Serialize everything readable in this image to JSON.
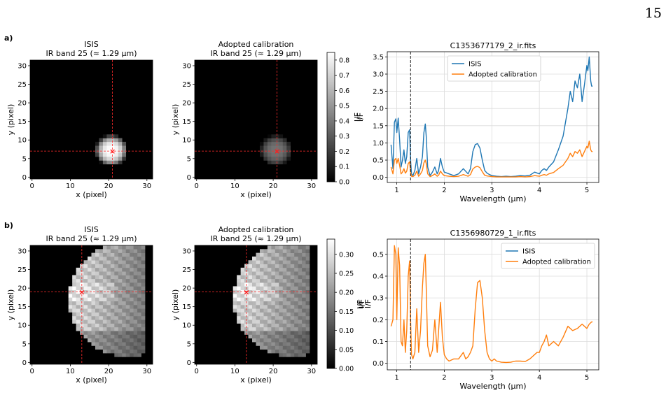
{
  "page_number": "15",
  "rows": [
    {
      "label": "a)",
      "images": [
        {
          "title1": "ISIS",
          "title2": "IR band 25 (≈ 1.29 µm)"
        },
        {
          "title1": "Adopted calibration",
          "title2": "IR band 25 (≈ 1.29 µm)"
        }
      ],
      "image_axes": {
        "xlabel": "x (pixel)",
        "ylabel": "y (pixel)",
        "xticks": [
          0,
          10,
          20,
          30
        ],
        "yticks": [
          0,
          5,
          10,
          15,
          20,
          25,
          30
        ]
      },
      "marker": {
        "x": 21,
        "y": 7
      },
      "colorbar": {
        "label": "I/F",
        "ticks": [
          "0.0",
          "0.1",
          "0.2",
          "0.3",
          "0.4",
          "0.5",
          "0.6",
          "0.7",
          "0.8"
        ],
        "max": 0.85
      },
      "spectrum": {
        "title": "C1353677179_2_ir.fits",
        "xlabel": "Wavelength (µm)",
        "ylabel": "I/F",
        "legend": [
          "ISIS",
          "Adopted calibration"
        ],
        "legend_loc": "upper-center",
        "ylim": [
          -0.15,
          3.65
        ],
        "yticks": [
          "0.0",
          "0.5",
          "1.0",
          "1.5",
          "2.0",
          "2.5",
          "3.0",
          "3.5"
        ]
      }
    },
    {
      "label": "b)",
      "images": [
        {
          "title1": "ISIS",
          "title2": "IR band 25 (≈ 1.29 µm)"
        },
        {
          "title1": "Adopted calibration",
          "title2": "IR band 25 (≈ 1.29 µm)"
        }
      ],
      "image_axes": {
        "xlabel": "x (pixel)",
        "ylabel": "y (pixel)",
        "xticks": [
          0,
          10,
          20,
          30
        ],
        "yticks": [
          0,
          5,
          10,
          15,
          20,
          25,
          30
        ]
      },
      "marker": {
        "x": 13,
        "y": 19
      },
      "colorbar": {
        "label": "I/F",
        "label2": "I/F",
        "ticks": [
          "0.00",
          "0.05",
          "0.10",
          "0.15",
          "0.20",
          "0.25",
          "0.30"
        ],
        "max": 0.34
      },
      "spectrum": {
        "title": "C1356980729_1_ir.fits",
        "xlabel": "Wavelength (µm)",
        "ylabel": "I/F",
        "legend": [
          "ISIS",
          "Adopted calibration"
        ],
        "legend_loc": "upper-right",
        "ylim": [
          -0.03,
          0.57
        ],
        "yticks": [
          "0.0",
          "0.1",
          "0.2",
          "0.3",
          "0.4",
          "0.5"
        ]
      }
    }
  ],
  "chart_data": [
    {
      "type": "line",
      "title": "C1353677179_2_ir.fits",
      "xlabel": "Wavelength (µm)",
      "ylabel": "I/F",
      "xlim": [
        0.8,
        5.25
      ],
      "ylim": [
        -0.15,
        3.65
      ],
      "xticks": [
        1,
        2,
        3,
        4,
        5
      ],
      "vline_x": 1.29,
      "grid": true,
      "series": [
        {
          "name": "ISIS",
          "color": "#1f77b4",
          "x": [
            0.88,
            0.92,
            0.95,
            0.98,
            1.0,
            1.03,
            1.06,
            1.09,
            1.12,
            1.15,
            1.18,
            1.21,
            1.24,
            1.27,
            1.29,
            1.31,
            1.34,
            1.38,
            1.42,
            1.46,
            1.5,
            1.54,
            1.57,
            1.6,
            1.62,
            1.65,
            1.7,
            1.75,
            1.8,
            1.85,
            1.88,
            1.92,
            1.96,
            2.0,
            2.1,
            2.2,
            2.3,
            2.4,
            2.5,
            2.55,
            2.6,
            2.65,
            2.7,
            2.75,
            2.8,
            2.85,
            2.9,
            2.95,
            3.0,
            3.1,
            3.2,
            3.3,
            3.4,
            3.5,
            3.6,
            3.7,
            3.8,
            3.9,
            4.0,
            4.05,
            4.1,
            4.15,
            4.2,
            4.3,
            4.4,
            4.5,
            4.55,
            4.6,
            4.65,
            4.7,
            4.75,
            4.8,
            4.85,
            4.9,
            4.95,
            5.0,
            5.02,
            5.05,
            5.08,
            5.1,
            5.12
          ],
          "y": [
            0.95,
            0.25,
            1.6,
            1.7,
            1.3,
            1.72,
            1.1,
            0.3,
            0.5,
            0.8,
            0.4,
            0.6,
            1.3,
            1.38,
            0.5,
            0.1,
            0.05,
            0.2,
            0.55,
            0.1,
            0.3,
            0.6,
            1.3,
            1.55,
            1.2,
            0.3,
            0.05,
            0.15,
            0.3,
            0.1,
            0.2,
            0.55,
            0.3,
            0.15,
            0.1,
            0.05,
            0.1,
            0.25,
            0.1,
            0.25,
            0.75,
            0.95,
            0.98,
            0.85,
            0.5,
            0.2,
            0.12,
            0.08,
            0.05,
            0.03,
            0.02,
            0.03,
            0.02,
            0.03,
            0.05,
            0.04,
            0.06,
            0.15,
            0.1,
            0.2,
            0.25,
            0.2,
            0.3,
            0.45,
            0.8,
            1.2,
            1.6,
            2.0,
            2.5,
            2.2,
            2.8,
            2.6,
            3.0,
            2.2,
            2.7,
            3.25,
            3.1,
            3.5,
            2.8,
            2.65,
            2.65
          ]
        },
        {
          "name": "Adopted calibration",
          "color": "#ff7f0e",
          "x": [
            0.88,
            0.92,
            0.95,
            0.98,
            1.0,
            1.03,
            1.06,
            1.09,
            1.12,
            1.15,
            1.18,
            1.21,
            1.24,
            1.27,
            1.29,
            1.31,
            1.34,
            1.38,
            1.42,
            1.46,
            1.5,
            1.54,
            1.57,
            1.6,
            1.62,
            1.65,
            1.7,
            1.75,
            1.8,
            1.85,
            1.88,
            1.92,
            1.96,
            2.0,
            2.1,
            2.2,
            2.3,
            2.4,
            2.5,
            2.55,
            2.6,
            2.65,
            2.7,
            2.75,
            2.8,
            2.85,
            2.9,
            2.95,
            3.0,
            3.1,
            3.2,
            3.3,
            3.4,
            3.5,
            3.6,
            3.7,
            3.8,
            3.9,
            4.0,
            4.05,
            4.1,
            4.15,
            4.2,
            4.3,
            4.4,
            4.5,
            4.55,
            4.6,
            4.65,
            4.7,
            4.75,
            4.8,
            4.85,
            4.9,
            4.95,
            5.0,
            5.02,
            5.05,
            5.08,
            5.1,
            5.12
          ],
          "y": [
            0.3,
            0.1,
            0.5,
            0.55,
            0.4,
            0.55,
            0.35,
            0.1,
            0.15,
            0.25,
            0.12,
            0.18,
            0.4,
            0.45,
            0.15,
            0.03,
            0.02,
            0.06,
            0.18,
            0.03,
            0.1,
            0.2,
            0.42,
            0.5,
            0.4,
            0.1,
            0.02,
            0.05,
            0.1,
            0.03,
            0.06,
            0.18,
            0.1,
            0.05,
            0.03,
            0.02,
            0.03,
            0.08,
            0.03,
            0.08,
            0.24,
            0.3,
            0.32,
            0.28,
            0.16,
            0.06,
            0.04,
            0.03,
            0.02,
            0.01,
            0.01,
            0.01,
            0.01,
            0.01,
            0.02,
            0.01,
            0.02,
            0.05,
            0.03,
            0.06,
            0.08,
            0.06,
            0.1,
            0.14,
            0.25,
            0.35,
            0.45,
            0.55,
            0.7,
            0.6,
            0.75,
            0.7,
            0.8,
            0.6,
            0.75,
            0.9,
            0.85,
            1.05,
            0.8,
            0.75,
            0.75
          ]
        }
      ]
    },
    {
      "type": "line",
      "title": "C1356980729_1_ir.fits",
      "xlabel": "Wavelength (µm)",
      "ylabel": "I/F",
      "xlim": [
        0.8,
        5.25
      ],
      "ylim": [
        -0.03,
        0.57
      ],
      "xticks": [
        1,
        2,
        3,
        4,
        5
      ],
      "vline_x": 1.29,
      "grid": true,
      "series": [
        {
          "name": "ISIS",
          "color": "#1f77b4",
          "x": [],
          "y": []
        },
        {
          "name": "Adopted calibration",
          "color": "#ff7f0e",
          "x": [
            0.88,
            0.92,
            0.95,
            0.98,
            1.0,
            1.03,
            1.06,
            1.09,
            1.12,
            1.15,
            1.18,
            1.21,
            1.24,
            1.27,
            1.29,
            1.31,
            1.34,
            1.38,
            1.42,
            1.46,
            1.5,
            1.54,
            1.57,
            1.6,
            1.62,
            1.65,
            1.7,
            1.75,
            1.8,
            1.85,
            1.88,
            1.92,
            1.96,
            2.0,
            2.05,
            2.1,
            2.2,
            2.3,
            2.4,
            2.45,
            2.5,
            2.55,
            2.6,
            2.65,
            2.7,
            2.75,
            2.8,
            2.85,
            2.9,
            2.95,
            3.0,
            3.05,
            3.1,
            3.2,
            3.3,
            3.4,
            3.5,
            3.6,
            3.7,
            3.8,
            3.9,
            3.95,
            4.0,
            4.05,
            4.1,
            4.15,
            4.2,
            4.3,
            4.4,
            4.5,
            4.6,
            4.7,
            4.8,
            4.9,
            5.0,
            5.05,
            5.1,
            5.12
          ],
          "y": [
            0.17,
            0.2,
            0.54,
            0.5,
            0.2,
            0.53,
            0.45,
            0.1,
            0.08,
            0.2,
            0.05,
            0.15,
            0.4,
            0.47,
            0.2,
            0.04,
            0.02,
            0.05,
            0.25,
            0.05,
            0.15,
            0.35,
            0.46,
            0.5,
            0.35,
            0.08,
            0.03,
            0.06,
            0.2,
            0.05,
            0.15,
            0.28,
            0.12,
            0.04,
            0.02,
            0.01,
            0.02,
            0.02,
            0.05,
            0.02,
            0.03,
            0.05,
            0.08,
            0.25,
            0.37,
            0.38,
            0.3,
            0.15,
            0.05,
            0.02,
            0.01,
            0.02,
            0.01,
            0.005,
            0.004,
            0.005,
            0.01,
            0.01,
            0.008,
            0.02,
            0.04,
            0.05,
            0.05,
            0.08,
            0.1,
            0.13,
            0.08,
            0.1,
            0.08,
            0.12,
            0.17,
            0.15,
            0.16,
            0.18,
            0.16,
            0.18,
            0.19,
            0.19
          ]
        }
      ]
    }
  ]
}
